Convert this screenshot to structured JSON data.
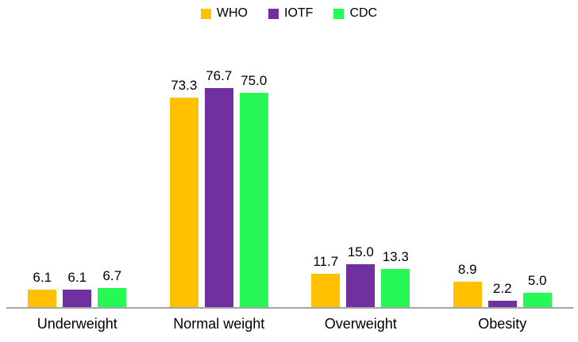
{
  "chart_data": {
    "type": "bar",
    "title": "",
    "xlabel": "",
    "ylabel": "",
    "categories": [
      "Underweight",
      "Normal weight",
      "Overweight",
      "Obesity"
    ],
    "series": [
      {
        "name": "WHO",
        "color": "#FFC000",
        "values": [
          6.1,
          73.3,
          11.7,
          8.9
        ],
        "labels": [
          "6.1",
          "73.3",
          "11.7",
          "8.9"
        ]
      },
      {
        "name": "IOTF",
        "color": "#7030A0",
        "values": [
          6.1,
          76.7,
          15.0,
          2.2
        ],
        "labels": [
          "6.1",
          "76.7",
          "15.0",
          "2.2"
        ]
      },
      {
        "name": "CDC",
        "color": "#26F956",
        "values": [
          6.7,
          75.0,
          13.3,
          5.0
        ],
        "labels": [
          "6.7",
          "75.0",
          "13.3",
          "5.0"
        ]
      }
    ],
    "ylim": [
      0,
      96
    ],
    "grid": false,
    "y_axis_visible": false,
    "data_labels": true,
    "legend_position": "top",
    "axis_line_color": "#A6A6A6",
    "background_color": "#FFFFFF",
    "text_color": "#000000"
  }
}
